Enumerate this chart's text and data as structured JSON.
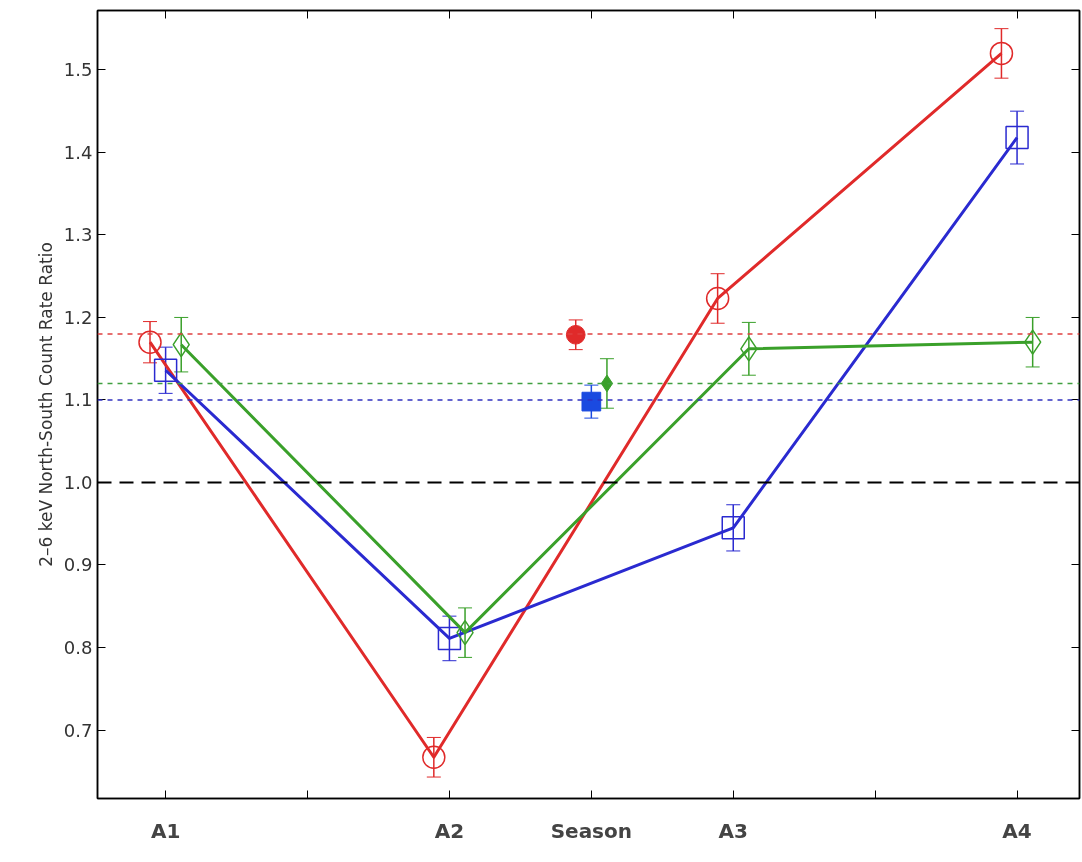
{
  "chart_data": {
    "type": "line",
    "ylabel": "2–6 keV North-South Count Rate Ratio",
    "categories": [
      "A1",
      null,
      "A2",
      "Season",
      "A3",
      null,
      "A4"
    ],
    "ylim": [
      0.617,
      1.572
    ],
    "yticks": [
      0.7,
      0.8,
      0.9,
      {
        "value": 1.0,
        "label": "1.0"
      },
      1.1,
      1.2,
      1.3,
      1.4,
      1.5
    ],
    "grid": false,
    "series": [
      {
        "marker": "circle",
        "color": "#e02a2a",
        "values": [
          1.17,
          null,
          0.667,
          null,
          1.223,
          null,
          1.52
        ],
        "errors": [
          0.025,
          null,
          0.024,
          null,
          0.03,
          null,
          0.03
        ]
      },
      {
        "marker": "square",
        "color": "#2a2ad0",
        "values": [
          1.136,
          null,
          0.811,
          null,
          0.945,
          null,
          1.418
        ],
        "errors": [
          0.028,
          null,
          0.027,
          null,
          0.028,
          null,
          0.032
        ]
      },
      {
        "marker": "diamond",
        "color": "#3aa02a",
        "values": [
          1.167,
          null,
          0.818,
          null,
          1.162,
          null,
          1.17
        ],
        "errors": [
          0.033,
          null,
          0.03,
          null,
          0.032,
          null,
          0.03
        ]
      },
      {
        "type": "scatter",
        "marker": "circle",
        "color": "#e02a2a",
        "values": [
          null,
          null,
          null,
          1.179,
          null,
          null,
          null
        ],
        "errors": [
          null,
          null,
          null,
          0.018,
          null,
          null,
          null
        ]
      },
      {
        "type": "scatter",
        "marker": "square",
        "color": "#1a4ae0",
        "values": [
          null,
          null,
          null,
          1.098,
          null,
          null,
          null
        ],
        "errors": [
          null,
          null,
          null,
          0.02,
          null,
          null,
          null
        ]
      },
      {
        "type": "scatter",
        "marker": "diamond",
        "color": "#3aa02a",
        "values": [
          null,
          null,
          null,
          1.12,
          null,
          null,
          null
        ],
        "errors": [
          null,
          null,
          null,
          0.03,
          null,
          null,
          null
        ]
      }
    ],
    "ref_lines": [
      {
        "axis": "y",
        "value": 1.18,
        "color": "#e04040",
        "line_style": "dotted"
      },
      {
        "axis": "y",
        "value": 1.12,
        "color": "#40a040",
        "line_style": "dotted"
      },
      {
        "axis": "y",
        "value": 1.1,
        "color": "#3030c0",
        "line_style": "dotted"
      },
      {
        "axis": "y",
        "value": 1.0,
        "color": "#000000",
        "line_style": "dashed"
      }
    ]
  }
}
